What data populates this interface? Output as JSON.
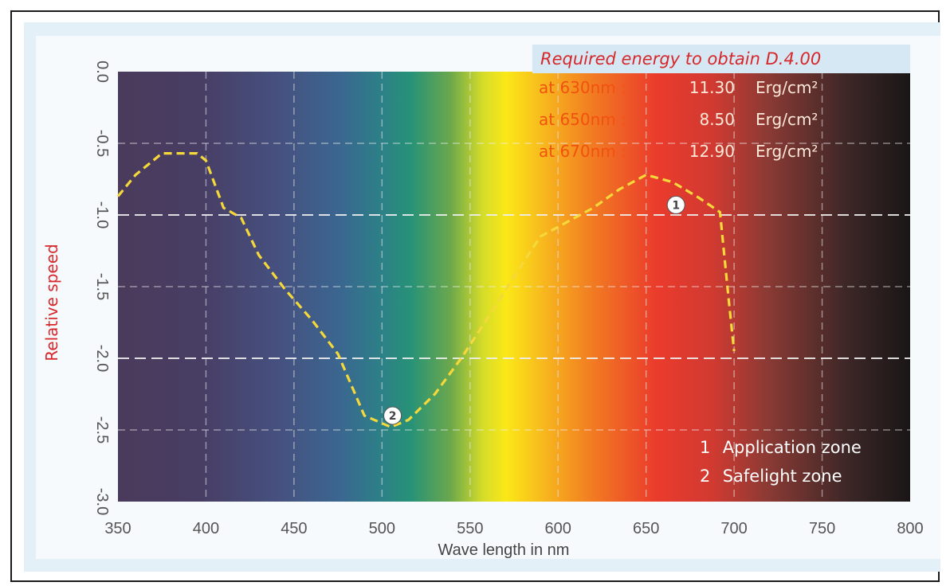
{
  "chart_data": {
    "type": "line",
    "xlabel": "Wave length in nm",
    "ylabel": "Relative speed",
    "xlim": [
      350,
      800
    ],
    "ylim": [
      -3.0,
      0.0
    ],
    "x_ticks": [
      "350",
      "400",
      "450",
      "500",
      "550",
      "600",
      "650",
      "700",
      "750",
      "800"
    ],
    "y_ticks": [
      "0.0",
      "-0.5",
      "-1.0",
      "-1.5",
      "-2.0",
      "-2.5",
      "-3.0"
    ],
    "background": "visible-spectrum gradient",
    "series": [
      {
        "line_color": "#f5d83a",
        "line_style": "dashed",
        "x": [
          350,
          360,
          375,
          395,
          400,
          410,
          420,
          430,
          445,
          460,
          475,
          490,
          505,
          515,
          530,
          545,
          560,
          575,
          590,
          605,
          620,
          635,
          650,
          665,
          680,
          692,
          697,
          700
        ],
        "y": [
          -0.87,
          -0.72,
          -0.57,
          -0.57,
          -0.62,
          -0.95,
          -1.02,
          -1.28,
          -1.52,
          -1.73,
          -1.97,
          -2.4,
          -2.48,
          -2.43,
          -2.25,
          -2.0,
          -1.72,
          -1.43,
          -1.15,
          -1.05,
          -0.95,
          -0.82,
          -0.72,
          -0.77,
          -0.88,
          -0.98,
          -1.6,
          -1.95
        ]
      }
    ],
    "annotations": [
      {
        "marker": "1",
        "x": 667,
        "y": -0.93
      },
      {
        "marker": "2",
        "x": 506,
        "y": -2.4
      }
    ],
    "legend": [
      {
        "marker": "1",
        "label": "Application zone"
      },
      {
        "marker": "2",
        "label": "Safelight zone"
      }
    ],
    "legend_placement": "bottom-right",
    "energy_table": {
      "title": "Required energy to obtain D.4.00",
      "rows": [
        {
          "at": "at 630nm :",
          "value": "11.30",
          "unit": "Erg/cm²"
        },
        {
          "at": "at 650nm :",
          "value": "8.50",
          "unit": "Erg/cm²"
        },
        {
          "at": "at 670nm :",
          "value": "12.90",
          "unit": "Erg/cm²"
        }
      ]
    },
    "grid": true
  }
}
